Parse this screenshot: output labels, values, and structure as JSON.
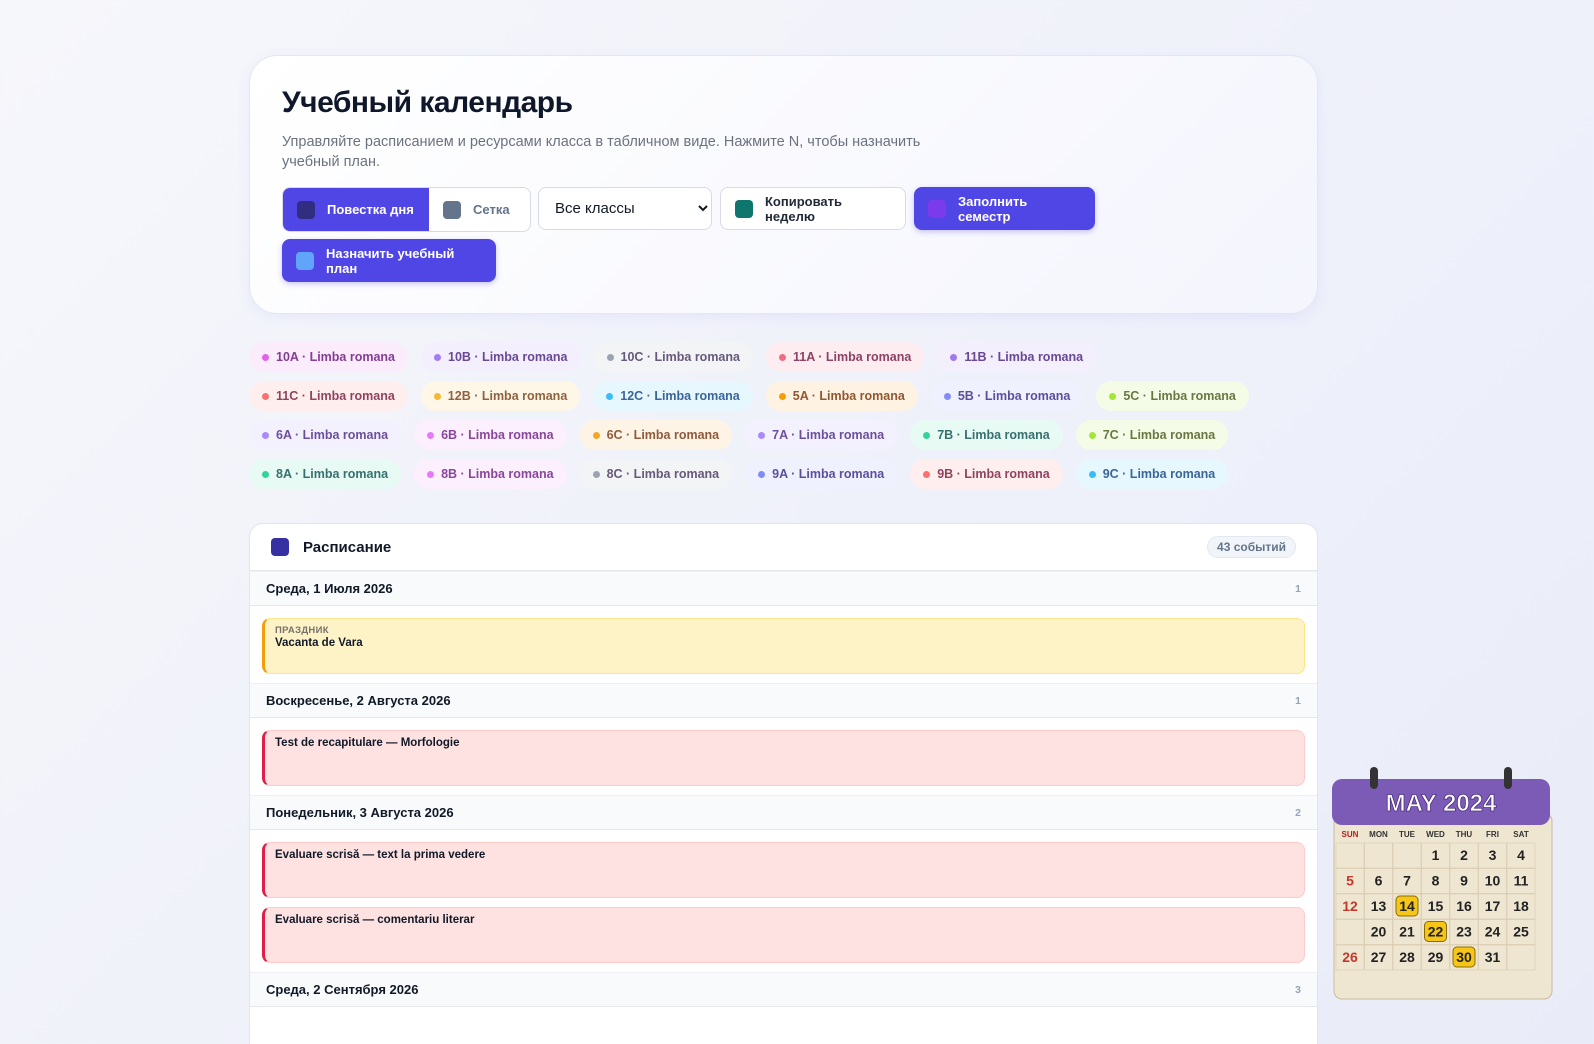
{
  "header": {
    "title": "Учебный календарь",
    "subtitle": "Управляйте расписанием и ресурсами класса в табличном виде. Нажмите N, чтобы назначить учебный план."
  },
  "toolbar": {
    "view_toggle": [
      "Повестка дня",
      "Сетка"
    ],
    "class_select": "Все классы",
    "copy_week": "Копировать неделю",
    "fill_semester": "Заполнить семестр",
    "assign_plan": "Назначить учебный план"
  },
  "legend": [
    {
      "label": "10A · Limba romana",
      "color": "#e062e8"
    },
    {
      "label": "10B · Limba romana",
      "color": "#a27cf0"
    },
    {
      "label": "10C · Limba romana",
      "color": "#9ca3af"
    },
    {
      "label": "11A · Limba romana",
      "color": "#f06c80"
    },
    {
      "label": "11B · Limba romana",
      "color": "#9f7aea"
    },
    {
      "label": "11C · Limba romana",
      "color": "#f87171"
    },
    {
      "label": "12B · Limba romana",
      "color": "#f5b82e"
    },
    {
      "label": "12C · Limba romana",
      "color": "#38bdf8"
    },
    {
      "label": "5A · Limba romana",
      "color": "#f59e0b"
    },
    {
      "label": "5B · Limba romana",
      "color": "#818cf8"
    },
    {
      "label": "5C · Limba romana",
      "color": "#a3e635"
    },
    {
      "label": "6A · Limba romana",
      "color": "#a78bfa"
    },
    {
      "label": "6B · Limba romana",
      "color": "#e879f9"
    },
    {
      "label": "6C · Limba romana",
      "color": "#f5a623"
    },
    {
      "label": "7A · Limba romana",
      "color": "#a78bfa"
    },
    {
      "label": "7B · Limba romana",
      "color": "#34d399"
    },
    {
      "label": "7C · Limba romana",
      "color": "#a3e635"
    },
    {
      "label": "8A · Limba romana",
      "color": "#34d399"
    },
    {
      "label": "8B · Limba romana",
      "color": "#e879f9"
    },
    {
      "label": "8C · Limba romana",
      "color": "#9ca3af"
    },
    {
      "label": "9A · Limba romana",
      "color": "#818cf8"
    },
    {
      "label": "9B · Limba romana",
      "color": "#f87171"
    },
    {
      "label": "9C · Limba romana",
      "color": "#38bdf8"
    }
  ],
  "schedule": {
    "title": "Расписание",
    "count": "43 событий",
    "days": [
      {
        "date": "Среда, 1 Июля 2026",
        "count": 1,
        "events": [
          {
            "tag": "ПРАЗДНИК",
            "title": "Vacanta de Vara",
            "kind": "holiday"
          }
        ]
      },
      {
        "date": "Воскресенье, 2 Августа 2026",
        "count": 1,
        "events": [
          {
            "title": "Test de recapitulare — Morfologie",
            "kind": "test"
          }
        ]
      },
      {
        "date": "Понедельник, 3 Августа 2026",
        "count": 2,
        "events": [
          {
            "title": "Evaluare scrisă — text la prima vedere",
            "kind": "test"
          },
          {
            "title": "Evaluare scrisă — comentariu literar",
            "kind": "test"
          }
        ]
      },
      {
        "date": "Среда, 2 Сентября 2026",
        "count": 3,
        "events": []
      }
    ]
  },
  "illustration": {
    "title": "MAY 2024",
    "weekdays": [
      "SUN",
      "MON",
      "TUE",
      "WED",
      "THU",
      "FRI",
      "SAT"
    ],
    "weeks": [
      [
        null,
        null,
        null,
        1,
        2,
        3,
        4
      ],
      [
        5,
        6,
        7,
        8,
        9,
        10,
        11
      ],
      [
        12,
        13,
        14,
        15,
        16,
        17,
        18
      ],
      [
        null,
        20,
        21,
        22,
        23,
        24,
        25
      ],
      [
        26,
        27,
        28,
        29,
        30,
        31,
        null
      ]
    ],
    "highlighted": [
      14,
      22,
      30
    ]
  }
}
